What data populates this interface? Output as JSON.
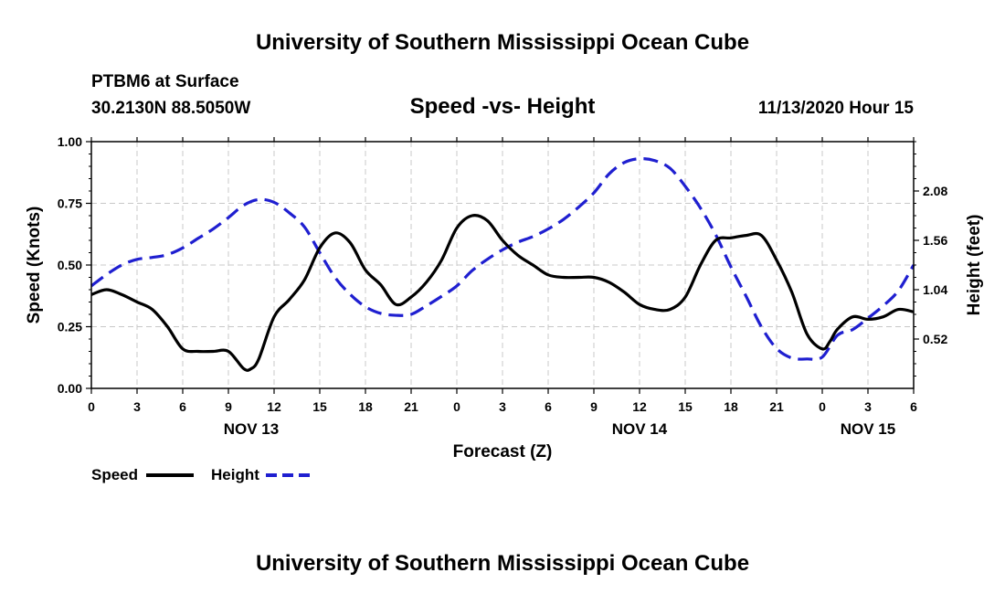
{
  "header": {
    "title": "University of Southern Mississippi Ocean Cube",
    "station": "PTBM6 at Surface",
    "coords": "30.2130N 88.5050W",
    "chart_title": "Speed -vs- Height",
    "timestamp": "11/13/2020 Hour 15"
  },
  "footer": {
    "title": "University of Southern Mississippi Ocean Cube"
  },
  "colors": {
    "speed": "#000000",
    "height": "#1f1fd0",
    "grid": "#c8c8c8"
  },
  "chart_data": {
    "type": "line",
    "title": "Speed -vs- Height",
    "xlabel": "Forecast (Z)",
    "ylabel": "Speed (Knots)",
    "y2label": "Height (feet)",
    "xlim": [
      0,
      54
    ],
    "ylim": [
      0,
      1
    ],
    "y2lim": [
      0,
      2.6
    ],
    "x_ticks": [
      0,
      3,
      6,
      9,
      12,
      15,
      18,
      21,
      24,
      27,
      30,
      33,
      36,
      39,
      42,
      45,
      48,
      51,
      54
    ],
    "x_tick_labels": [
      "0",
      "3",
      "6",
      "9",
      "12",
      "15",
      "18",
      "21",
      "0",
      "3",
      "6",
      "9",
      "12",
      "15",
      "18",
      "21",
      "0",
      "3",
      "6"
    ],
    "y_ticks": [
      0,
      0.25,
      0.5,
      0.75,
      1
    ],
    "y_tick_labels": [
      "0.00",
      "0.25",
      "0.50",
      "0.75",
      "1.00"
    ],
    "y2_ticks": [
      0.52,
      1.04,
      1.56,
      2.08
    ],
    "y2_tick_labels": [
      "0.52",
      "1.04",
      "1.56",
      "2.08"
    ],
    "date_labels": [
      {
        "x": 10.5,
        "label": "NOV 13"
      },
      {
        "x": 36,
        "label": "NOV 14"
      },
      {
        "x": 51,
        "label": "NOV 15"
      }
    ],
    "legend": [
      {
        "name": "Speed",
        "style": "solid"
      },
      {
        "name": "Height",
        "style": "dashed"
      }
    ],
    "series": [
      {
        "name": "Speed",
        "axis": "left",
        "style": "solid",
        "x": [
          0,
          1,
          2,
          3,
          4,
          5,
          6,
          7,
          8,
          9,
          10,
          10.5,
          11,
          12,
          13,
          14,
          15,
          16,
          17,
          18,
          19,
          20,
          21,
          22,
          23,
          24,
          25,
          26,
          27,
          28,
          29,
          30,
          31,
          32,
          33,
          34,
          35,
          36,
          37,
          38,
          39,
          40,
          41,
          42,
          43,
          44,
          45,
          46,
          47,
          48,
          48.5,
          49,
          50,
          51,
          52,
          53,
          54
        ],
        "values": [
          0.38,
          0.4,
          0.38,
          0.35,
          0.32,
          0.25,
          0.16,
          0.15,
          0.15,
          0.15,
          0.08,
          0.08,
          0.12,
          0.29,
          0.36,
          0.44,
          0.57,
          0.63,
          0.59,
          0.48,
          0.42,
          0.34,
          0.37,
          0.43,
          0.52,
          0.65,
          0.7,
          0.68,
          0.6,
          0.54,
          0.5,
          0.46,
          0.45,
          0.45,
          0.45,
          0.43,
          0.39,
          0.34,
          0.32,
          0.32,
          0.37,
          0.5,
          0.6,
          0.61,
          0.62,
          0.62,
          0.52,
          0.39,
          0.22,
          0.16,
          0.19,
          0.24,
          0.29,
          0.28,
          0.29,
          0.32,
          0.31
        ]
      },
      {
        "name": "Height",
        "axis": "right",
        "style": "dashed",
        "x": [
          0,
          1,
          2,
          3,
          4,
          5,
          6,
          7,
          8,
          9,
          10,
          11,
          12,
          13,
          14,
          15,
          16,
          17,
          18,
          19,
          20,
          21,
          22,
          23,
          24,
          25,
          26,
          27,
          28,
          29,
          30,
          31,
          32,
          33,
          34,
          35,
          36,
          37,
          38,
          39,
          40,
          41,
          42,
          43,
          44,
          45,
          46,
          47,
          48,
          49,
          50,
          51,
          52,
          53,
          54
        ],
        "values": [
          1.08,
          1.2,
          1.3,
          1.36,
          1.38,
          1.41,
          1.48,
          1.58,
          1.68,
          1.8,
          1.93,
          1.99,
          1.96,
          1.85,
          1.7,
          1.43,
          1.17,
          0.99,
          0.86,
          0.79,
          0.77,
          0.78,
          0.87,
          0.97,
          1.08,
          1.24,
          1.36,
          1.46,
          1.54,
          1.6,
          1.68,
          1.78,
          1.91,
          2.06,
          2.26,
          2.38,
          2.42,
          2.4,
          2.32,
          2.13,
          1.9,
          1.62,
          1.28,
          0.97,
          0.65,
          0.42,
          0.32,
          0.31,
          0.33,
          0.56,
          0.62,
          0.74,
          0.87,
          1.03,
          1.3
        ]
      }
    ]
  }
}
